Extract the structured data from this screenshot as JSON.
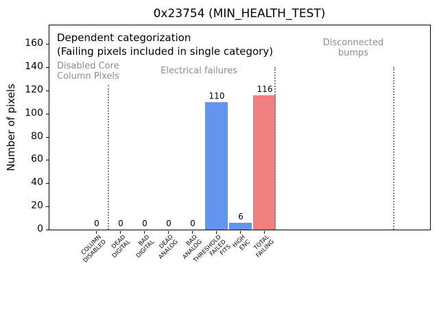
{
  "chart_data": {
    "type": "bar",
    "title": "0x23754 (MIN_HEALTH_TEST)",
    "xlabel": "",
    "ylabel": "Number of pixels",
    "ylim": [
      0,
      176
    ],
    "yticks": [
      0,
      20,
      40,
      60,
      80,
      100,
      120,
      140,
      160
    ],
    "grid": false,
    "legend": "none",
    "categories": [
      "COLUMN\nDISABLED",
      "DEAD\nDIGITAL",
      "BAD\nDIGITAL",
      "DEAD\nANALOG",
      "BAD\nANALOG",
      "THRESHOLD\nFAILED\nFITS",
      "HIGH\nENC",
      "TOTAL\nFAILING"
    ],
    "values": [
      0,
      0,
      0,
      0,
      0,
      110,
      6,
      116
    ],
    "bar_value_labels": [
      "0",
      "0",
      "0",
      "0",
      "0",
      "110",
      "6",
      "116"
    ],
    "bar_colors": [
      "#6495ed",
      "#6495ed",
      "#6495ed",
      "#6495ed",
      "#6495ed",
      "#6495ed",
      "#6495ed",
      "#f08080"
    ],
    "annotations": [
      {
        "id": "dependent-categorization",
        "text": "Dependent categorization\n(Failing pixels included in single category)",
        "color": "#000000"
      },
      {
        "id": "disabled-core-column-pixels",
        "text": "Disabled Core\nColumn Pixels",
        "color": "#8c8c8c"
      },
      {
        "id": "electrical-failures",
        "text": "Electrical failures",
        "color": "#8c8c8c"
      },
      {
        "id": "disconnected-bumps",
        "text": "Disconnected\nbumps",
        "color": "#8c8c8c"
      }
    ],
    "sections": [
      {
        "label": "Disabled Core Column Pixels",
        "categories": [
          "COLUMN DISABLED"
        ]
      },
      {
        "label": "Electrical failures",
        "categories": [
          "DEAD DIGITAL",
          "BAD DIGITAL",
          "DEAD ANALOG",
          "BAD ANALOG",
          "THRESHOLD FAILED FITS",
          "HIGH ENC",
          "TOTAL FAILING"
        ]
      },
      {
        "label": "Disconnected bumps",
        "categories": []
      }
    ],
    "colors": {
      "bar_blue": "#6495ed",
      "bar_red": "#f08080",
      "annotation_gray": "#8c8c8c",
      "separator_gray": "#7f7f7f",
      "axis": "#000000",
      "background": "#ffffff"
    }
  }
}
